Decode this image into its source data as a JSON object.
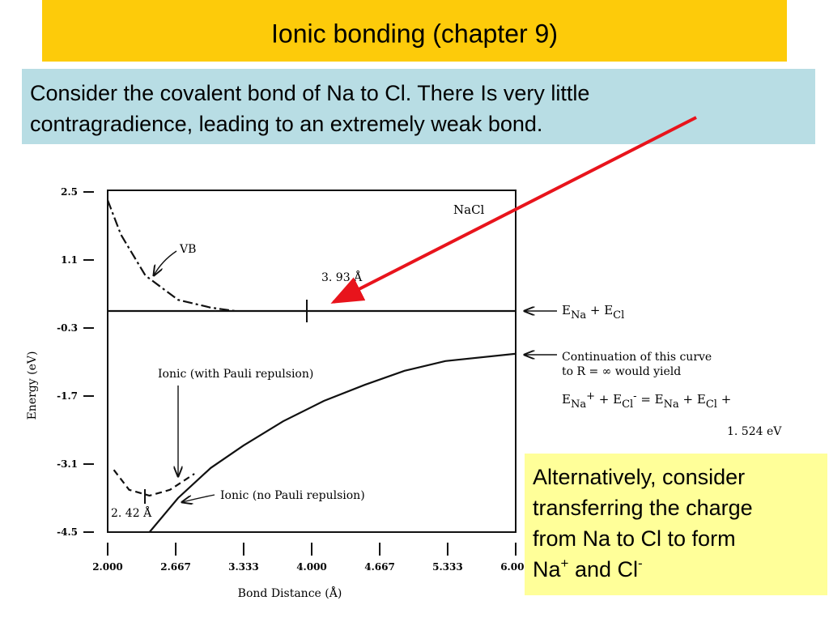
{
  "slide": {
    "title": "Ionic bonding (chapter 9)",
    "note_lines": [
      "Consider the covalent bond of Na to Cl. There Is very little",
      "contragradience, leading to an extremely weak bond."
    ],
    "aside_lines": [
      "Alternatively, consider",
      "transferring the charge",
      "from Na to Cl to form"
    ],
    "aside_last_parts": [
      "Na",
      "+",
      " and Cl",
      "-"
    ]
  },
  "chart_data": {
    "type": "line",
    "xlabel": "Bond Distance (Å)",
    "ylabel": "Energy (eV)",
    "xlim": [
      2.0,
      6.0
    ],
    "ylim": [
      -4.5,
      2.5
    ],
    "xticks": [
      {
        "value": 2.0,
        "label": "2.000"
      },
      2.667,
      3.333,
      {
        "value": 4.0,
        "label": "4.000"
      },
      4.667,
      5.333,
      {
        "value": 6.0,
        "label": "6.000"
      }
    ],
    "yticks": [
      2.5,
      1.1,
      -0.3,
      -1.7,
      -3.1,
      -4.5
    ],
    "series": [
      {
        "name": "VB",
        "color": "#111111",
        "style": "dashdot",
        "x": [
          2.0,
          2.13,
          2.37,
          2.69,
          3.01,
          3.25
        ],
        "values": [
          2.33,
          1.62,
          0.78,
          0.28,
          0.12,
          0.05
        ]
      },
      {
        "name": "Ionic (with Pauli repulsion)",
        "color": "#111111",
        "style": "dashed",
        "x": [
          2.06,
          2.21,
          2.41,
          2.61,
          2.85
        ],
        "values": [
          -3.22,
          -3.63,
          -3.75,
          -3.63,
          -3.3
        ]
      },
      {
        "name": "Ionic (no Pauli repulsion)",
        "color": "#111111",
        "style": "solid",
        "x": [
          2.41,
          2.69,
          3.01,
          3.33,
          3.72,
          4.12,
          4.52,
          4.91,
          5.31,
          6.0
        ],
        "values": [
          -4.5,
          -3.8,
          -3.18,
          -2.72,
          -2.22,
          -1.8,
          -1.47,
          -1.18,
          -0.98,
          -0.83
        ]
      },
      {
        "name": "E_Na + E_Cl",
        "color": "#111111",
        "style": "solid",
        "x": [
          2.0,
          6.0
        ],
        "values": [
          0.05,
          0.05
        ]
      }
    ],
    "annotations": {
      "nacl": "NaCl",
      "vb": "VB",
      "r393": "3. 93 Å",
      "pauli": "Ionic (with Pauli repulsion)",
      "nopauli": "Ionic (no Pauli repulsion)",
      "r242": "2. 42 Å",
      "sum_parts": [
        "E",
        "Na",
        " + E",
        "Cl"
      ],
      "cont1": "Continuation of this curve",
      "cont2": "to R = ∞ would yield",
      "formula_parts": [
        "E",
        "Na",
        "+",
        " + E",
        "Cl",
        "-",
        "  =  E",
        "Na",
        " + E",
        "Cl",
        " +"
      ],
      "ev": "1. 524 eV"
    }
  }
}
